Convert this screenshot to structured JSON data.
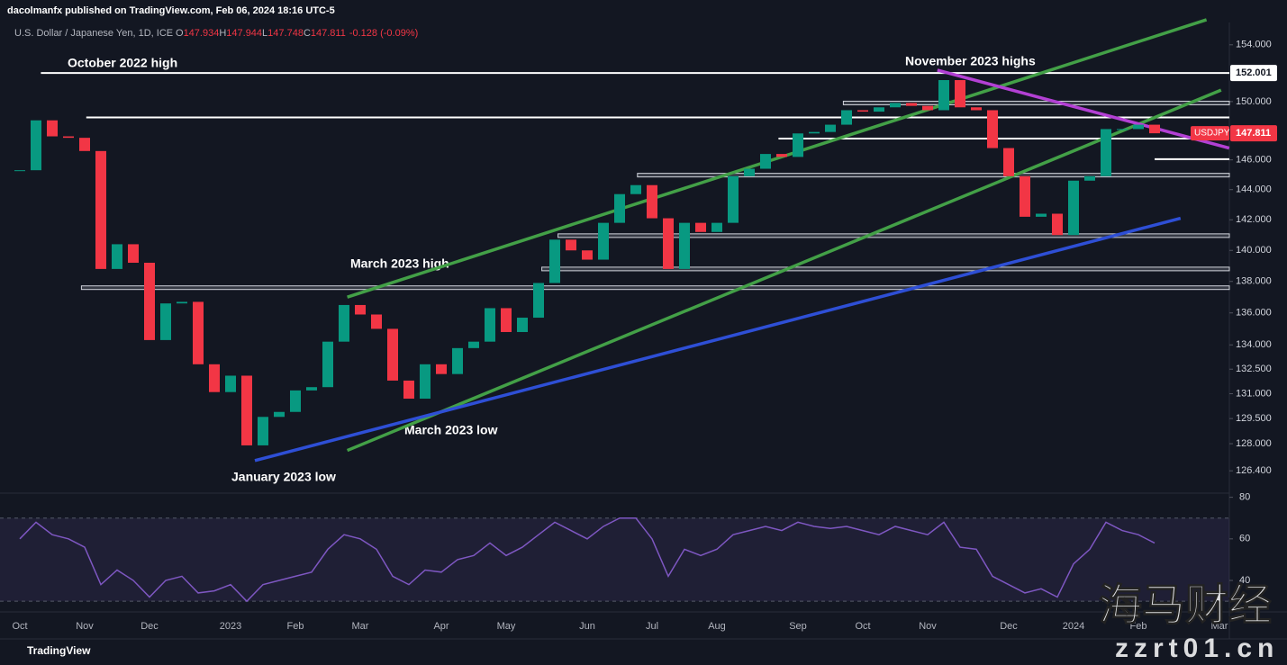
{
  "header": {
    "publisher": "dacolmanfx published on TradingView.com, Feb 06, 2024 18:16 UTC-5",
    "symbol": "U.S. Dollar / Japanese Yen, 1D, ICE",
    "ohlc": [
      {
        "label": "O",
        "value": 147.934
      },
      {
        "label": "H",
        "value": 147.944
      },
      {
        "label": "L",
        "value": 147.748
      },
      {
        "label": "C",
        "value": 147.811
      }
    ],
    "change": "-0.128 (-0.09%)"
  },
  "chart_data": {
    "type": "candlestick",
    "symbol_tag": "USDJPY",
    "log": true,
    "up_color": "#089981",
    "down_color": "#f23645",
    "categories": [
      "Oct",
      null,
      null,
      null,
      "Nov",
      null,
      null,
      null,
      "Dec",
      null,
      null,
      null,
      null,
      "2023",
      null,
      null,
      null,
      "Feb",
      null,
      null,
      null,
      "Mar",
      null,
      null,
      null,
      null,
      "Apr",
      null,
      null,
      null,
      "May",
      null,
      null,
      null,
      null,
      "Jun",
      null,
      null,
      null,
      "Jul",
      null,
      null,
      null,
      "Aug",
      null,
      null,
      null,
      null,
      "Sep",
      null,
      null,
      null,
      "Oct",
      null,
      null,
      null,
      "Nov",
      null,
      null,
      null,
      null,
      "Dec",
      null,
      null,
      null,
      "2024",
      null,
      null,
      null,
      "Feb",
      null,
      null,
      null,
      null,
      "Mar"
    ],
    "values": [
      145.3,
      148.7,
      147.6,
      147.5,
      146.6,
      138.8,
      140.4,
      139.2,
      134.3,
      136.6,
      136.7,
      132.8,
      131.1,
      132.1,
      127.9,
      129.6,
      129.9,
      131.2,
      131.4,
      134.2,
      136.5,
      135.9,
      135.0,
      131.8,
      130.7,
      132.8,
      132.2,
      133.8,
      134.2,
      136.3,
      134.8,
      135.7,
      137.9,
      140.7,
      140.0,
      139.4,
      141.8,
      143.7,
      144.3,
      142.1,
      138.8,
      141.8,
      141.2,
      141.8,
      144.9,
      145.4,
      146.4,
      146.2,
      147.8,
      147.9,
      148.4,
      149.4,
      149.3,
      149.6,
      149.9,
      149.7,
      149.4,
      151.5,
      149.6,
      149.4,
      146.8,
      144.9,
      142.2,
      142.4,
      141.0,
      144.6,
      144.9,
      148.1,
      148.1,
      148.4,
      147.811,
      null,
      null,
      null,
      null
    ],
    "ylim": [
      125.1,
      155.6
    ],
    "yticks": [
      {
        "value": 126.4,
        "label": "126.400"
      },
      {
        "value": 128,
        "label": "128.000"
      },
      {
        "value": 129.5,
        "label": "129.500"
      },
      {
        "value": 131,
        "label": "131.000"
      },
      {
        "value": 132.5,
        "label": "132.500"
      },
      {
        "value": 134,
        "label": "134.000"
      },
      {
        "value": 136,
        "label": "136.000"
      },
      {
        "value": 138,
        "label": "138.000"
      },
      {
        "value": 140,
        "label": "140.000"
      },
      {
        "value": 142,
        "label": "142.000"
      },
      {
        "value": 144,
        "label": "144.000"
      },
      {
        "value": 146,
        "label": "146.000"
      },
      {
        "value": 150,
        "label": "150.000"
      },
      {
        "value": 154,
        "label": "154.000"
      }
    ],
    "levels": [
      {
        "value": 152.001,
        "from": 1.3,
        "style": "line"
      },
      {
        "value": 148.9,
        "from": 4.1,
        "style": "line"
      },
      {
        "value": 147.45,
        "from": 46.8,
        "style": "line"
      },
      {
        "value": 146.05,
        "from": 70,
        "style": "line"
      },
      {
        "value": 149.9,
        "from": 50.8,
        "style": "band"
      },
      {
        "value": 144.97,
        "from": 38.1,
        "style": "band"
      },
      {
        "value": 140.96,
        "from": 33.2,
        "style": "band"
      },
      {
        "value": 138.8,
        "from": 32.2,
        "style": "band"
      },
      {
        "value": 137.6,
        "from": 3.8,
        "style": "band"
      }
    ],
    "trendlines": [
      {
        "color": "#43a047",
        "from": [
          20.2,
          137.0
        ],
        "to": [
          73.2,
          155.8
        ]
      },
      {
        "color": "#43a047",
        "from": [
          20.2,
          127.6
        ],
        "to": [
          74.1,
          150.8
        ]
      },
      {
        "color": "#2e4fd6",
        "from": [
          14.5,
          127.0
        ],
        "to": [
          71.6,
          142.1
        ]
      },
      {
        "color": "#b340d4",
        "from": [
          56.6,
          152.2
        ],
        "to": [
          74.6,
          146.8
        ]
      }
    ],
    "annotations": [
      "October 2022 high",
      "November 2023 highs",
      "March 2023 high",
      "March 2023 low",
      "January 2023 low"
    ],
    "rsi": {
      "color": "#7e57c2",
      "ylim": [
        24,
        82
      ],
      "yticks": [
        80,
        60,
        40
      ],
      "band": [
        30,
        70
      ],
      "values": [
        60,
        68,
        62,
        60,
        56,
        38,
        45,
        40,
        32,
        40,
        42,
        34,
        35,
        38,
        30,
        38,
        40,
        42,
        44,
        55,
        62,
        60,
        55,
        42,
        38,
        45,
        44,
        50,
        52,
        58,
        52,
        56,
        62,
        68,
        64,
        60,
        66,
        70,
        70,
        60,
        42,
        55,
        52,
        55,
        62,
        64,
        66,
        64,
        68,
        66,
        65,
        66,
        64,
        62,
        66,
        64,
        62,
        68,
        56,
        55,
        42,
        38,
        34,
        36,
        32,
        48,
        55,
        68,
        64,
        62,
        58,
        null,
        null,
        null,
        null
      ]
    }
  },
  "footer": {
    "brand": "TradingView"
  },
  "watermark": {
    "name": "海马财经",
    "site": "zzrt01.cn"
  }
}
